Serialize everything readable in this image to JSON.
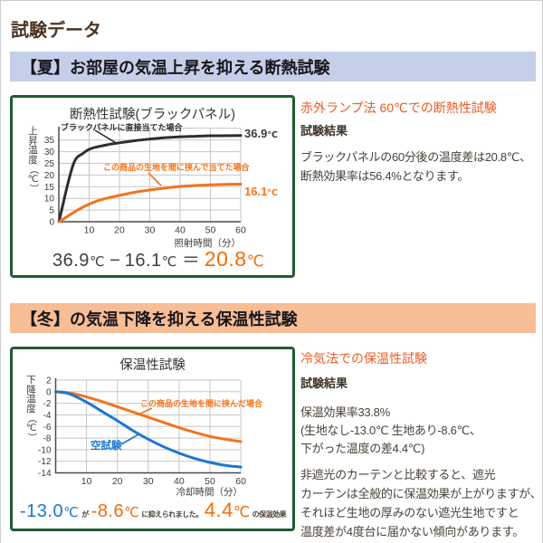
{
  "page": {
    "title": "試験データ"
  },
  "colors": {
    "title_brown": "#4b3322",
    "summer_bar_bg": "#c5cfe9",
    "winter_bar_bg": "#f7bd95",
    "chart_border_green": "#1e5c30",
    "accent_orange": "#f4731c",
    "heading_orange": "#ef5a21",
    "accent_blue": "#1c76d2",
    "body_text": "#4a4238"
  },
  "sections": {
    "summer": {
      "heading": "【夏】お部屋の気温上昇を抑える断熱試験",
      "aside": {
        "heading": "赤外ランプ法 60℃での断熱性試験",
        "result_label": "試験結果",
        "body_lines": {
          "0": "ブラックパネルの60分後の温度差は20.8℃、",
          "1": "断熱効果率は56.4%となります。"
        }
      },
      "formula": {
        "minuend": "36.9℃",
        "minus": "−",
        "subtrahend": "16.1℃",
        "equals": "＝",
        "result": "20.8℃"
      }
    },
    "winter": {
      "heading": "【冬】の気温下降を抑える保温性試験",
      "aside": {
        "heading": "冷気法での保温性試験",
        "result_label": "試験結果",
        "body_lines": {
          "0": "保温効果率33.8%",
          "1": "(生地なし-13.0℃ 生地あり-8.6℃、",
          "2": "下がった温度の差4.4℃)"
        },
        "note_lines": {
          "0": "非遮光のカーテンと比較すると、遮光",
          "1": "カーテンは全般的に保温効果が上がりますが、",
          "2": "それほど生地の厚みのない遮光生地ですと",
          "3": "温度差が4度台に届かない傾向があります。"
        }
      },
      "formula": {
        "base": "-13.0℃",
        "ga": "が",
        "reduced": "-8.6℃",
        "note": "に抑えられました。",
        "diff": "4.4℃",
        "diff_note": "の保温効果"
      }
    }
  },
  "chart_data": [
    {
      "type": "line",
      "title": "断熱性試験(ブラックパネル)",
      "xlabel": "照射時間（分）",
      "ylabel": "上昇温度（℃）",
      "xlim": [
        0,
        60
      ],
      "ylim": [
        0,
        40
      ],
      "x_ticks": [
        10,
        20,
        30,
        40,
        50,
        60
      ],
      "y_tick_labels": [
        0,
        5,
        10,
        15,
        20,
        25,
        30,
        35
      ],
      "y_grid": [
        5,
        10,
        15,
        20,
        25,
        30,
        35,
        40
      ],
      "series": [
        {
          "name": "ブラックパネルに直接当てた場合",
          "color": "#2e2e2e",
          "end_label": "36.9℃",
          "final_value": 36.9,
          "points": [
            [
              0,
              0
            ],
            [
              5,
              25.3
            ],
            [
              8,
              29.3
            ],
            [
              10,
              31
            ],
            [
              15,
              32.7
            ],
            [
              20,
              33.8
            ],
            [
              25,
              34.7
            ],
            [
              30,
              35.4
            ],
            [
              35,
              36.0
            ],
            [
              40,
              36.4
            ],
            [
              45,
              36.6
            ],
            [
              50,
              36.8
            ],
            [
              60,
              36.9
            ]
          ]
        },
        {
          "name": "この商品の生地を間に挟んで当てた場合",
          "color": "#f4731c",
          "end_label": "16.1℃",
          "final_value": 16.1,
          "points": [
            [
              0,
              0
            ],
            [
              8,
              6.3
            ],
            [
              12,
              8.6
            ],
            [
              15,
              9.8
            ],
            [
              20,
              11.3
            ],
            [
              25,
              12.6
            ],
            [
              30,
              13.6
            ],
            [
              35,
              14.4
            ],
            [
              40,
              15.1
            ],
            [
              45,
              15.5
            ],
            [
              50,
              15.8
            ],
            [
              55,
              16.0
            ],
            [
              60,
              16.1
            ]
          ]
        }
      ]
    },
    {
      "type": "line",
      "title": "保温性試験",
      "xlabel": "冷却時間（分）",
      "ylabel": "下降温度（℃）",
      "xlim": [
        0,
        60
      ],
      "ylim": [
        -14,
        2
      ],
      "x_ticks": [
        10,
        20,
        30,
        40,
        50,
        60
      ],
      "y_tick_labels": [
        2,
        0,
        -2,
        -4,
        -6,
        -8,
        -10,
        -12,
        -14
      ],
      "y_grid": [
        2,
        0,
        -2,
        -4,
        -6,
        -8,
        -10,
        -12
      ],
      "series": [
        {
          "name": "この商品の生地を間に挟んだ場合",
          "color": "#f4731c",
          "final_value": -8.6,
          "points": [
            [
              0,
              0
            ],
            [
              3,
              -0.1
            ],
            [
              5,
              -0.25
            ],
            [
              10,
              -0.9
            ],
            [
              15,
              -1.7
            ],
            [
              20,
              -2.6
            ],
            [
              25,
              -3.5
            ],
            [
              30,
              -4.4
            ],
            [
              35,
              -5.3
            ],
            [
              40,
              -6.2
            ],
            [
              45,
              -7.0
            ],
            [
              50,
              -7.7
            ],
            [
              55,
              -8.2
            ],
            [
              60,
              -8.6
            ]
          ]
        },
        {
          "name": "空試験",
          "color": "#1c76d2",
          "final_value": -13.0,
          "points": [
            [
              0,
              0
            ],
            [
              4,
              -0.3
            ],
            [
              10,
              -1.8
            ],
            [
              15,
              -3.4
            ],
            [
              20,
              -5.0
            ],
            [
              25,
              -6.7
            ],
            [
              30,
              -8.2
            ],
            [
              35,
              -9.5
            ],
            [
              40,
              -10.6
            ],
            [
              45,
              -11.5
            ],
            [
              50,
              -12.2
            ],
            [
              55,
              -12.7
            ],
            [
              60,
              -13.0
            ]
          ]
        }
      ]
    }
  ]
}
